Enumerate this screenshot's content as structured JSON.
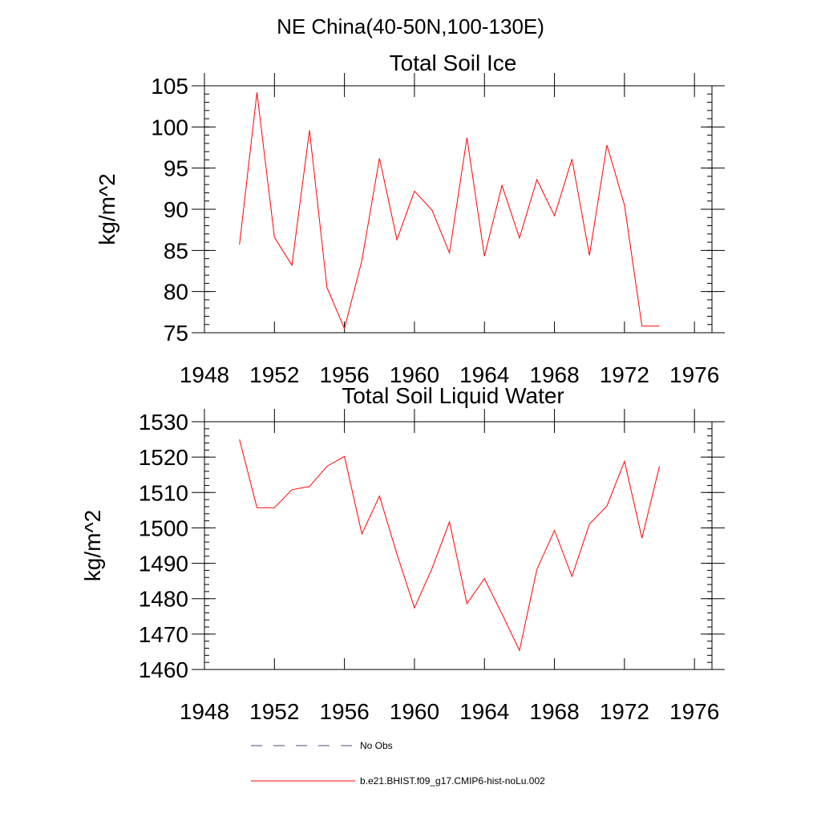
{
  "header": {
    "title": "NE China(40-50N,100-130E)"
  },
  "colors": {
    "model_line": "#ff0000",
    "obs_line": "#4a4a7a",
    "axis": "#000000"
  },
  "legend": {
    "items": [
      {
        "label": "No Obs",
        "style": "dashed",
        "color": "#4a4a7a"
      },
      {
        "label": "b.e21.BHIST.f09_g17.CMIP6-hist-noLu.002",
        "style": "solid",
        "color": "#ff0000"
      }
    ]
  },
  "chart_data": [
    {
      "type": "line",
      "title": "Total Soil Ice",
      "xlabel": "",
      "ylabel": "kg/m^2",
      "xlim": [
        1948,
        1977
      ],
      "ylim": [
        75,
        105
      ],
      "xticks": [
        1948,
        1952,
        1956,
        1960,
        1964,
        1968,
        1972,
        1976
      ],
      "yticks": [
        75,
        80,
        85,
        90,
        95,
        100,
        105
      ],
      "grid": false,
      "series": [
        {
          "name": "b.e21.BHIST.f09_g17.CMIP6-hist-noLu.002",
          "color": "#ff0000",
          "x": [
            1950,
            1951,
            1952,
            1953,
            1954,
            1955,
            1956,
            1957,
            1958,
            1959,
            1960,
            1961,
            1962,
            1963,
            1964,
            1965,
            1966,
            1967,
            1968,
            1969,
            1970,
            1971,
            1972,
            1973,
            1974
          ],
          "values": [
            85.7,
            104.2,
            86.6,
            83.2,
            99.6,
            80.5,
            75.5,
            83.8,
            96.2,
            86.3,
            92.2,
            89.9,
            84.7,
            98.7,
            84.3,
            92.9,
            86.5,
            93.6,
            89.2,
            96.1,
            84.4,
            97.8,
            90.5,
            75.8,
            75.8
          ]
        }
      ]
    },
    {
      "type": "line",
      "title": "Total Soil Liquid Water",
      "xlabel": "",
      "ylabel": "kg/m^2",
      "xlim": [
        1948,
        1977
      ],
      "ylim": [
        1460,
        1530
      ],
      "xticks": [
        1948,
        1952,
        1956,
        1960,
        1964,
        1968,
        1972,
        1976
      ],
      "yticks": [
        1460,
        1470,
        1480,
        1490,
        1500,
        1510,
        1520,
        1530
      ],
      "grid": false,
      "series": [
        {
          "name": "b.e21.BHIST.f09_g17.CMIP6-hist-noLu.002",
          "color": "#ff0000",
          "x": [
            1950,
            1951,
            1952,
            1953,
            1954,
            1955,
            1956,
            1957,
            1958,
            1959,
            1960,
            1961,
            1962,
            1963,
            1964,
            1965,
            1966,
            1967,
            1968,
            1969,
            1970,
            1971,
            1972,
            1973,
            1974
          ],
          "values": [
            1525,
            1505.7,
            1505.7,
            1510.8,
            1511.7,
            1517.4,
            1520.2,
            1498.3,
            1509,
            1492.6,
            1477.4,
            1488.5,
            1501.7,
            1478.6,
            1485.7,
            1475.7,
            1465.4,
            1488.3,
            1499.3,
            1486.3,
            1501.1,
            1506.2,
            1518.8,
            1497.1,
            1517.4
          ]
        }
      ]
    }
  ]
}
